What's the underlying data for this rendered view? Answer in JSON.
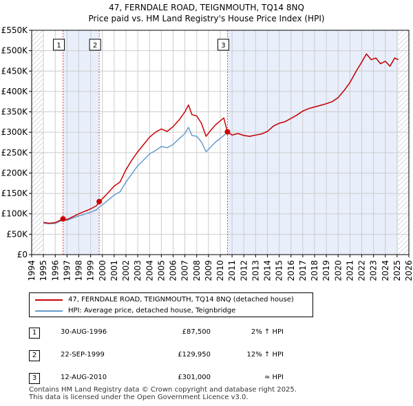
{
  "chart_data": {
    "type": "line",
    "title": "47, FERNDALE ROAD, TEIGNMOUTH, TQ14 8NQ",
    "subtitle": "Price paid vs. HM Land Registry's House Price Index (HPI)",
    "xlim": [
      1994,
      2026
    ],
    "ylim": [
      0,
      550000
    ],
    "x_ticks": [
      1994,
      1995,
      1996,
      1997,
      1998,
      1999,
      2000,
      2001,
      2002,
      2003,
      2004,
      2005,
      2006,
      2007,
      2008,
      2009,
      2010,
      2011,
      2012,
      2013,
      2014,
      2015,
      2016,
      2017,
      2018,
      2019,
      2020,
      2021,
      2022,
      2023,
      2024,
      2025,
      2026
    ],
    "y_ticks": [
      {
        "value": 0,
        "label": "£0"
      },
      {
        "value": 50000,
        "label": "£50K"
      },
      {
        "value": 100000,
        "label": "£100K"
      },
      {
        "value": 150000,
        "label": "£150K"
      },
      {
        "value": 200000,
        "label": "£200K"
      },
      {
        "value": 250000,
        "label": "£250K"
      },
      {
        "value": 300000,
        "label": "£300K"
      },
      {
        "value": 350000,
        "label": "£350K"
      },
      {
        "value": 400000,
        "label": "£400K"
      },
      {
        "value": 450000,
        "label": "£450K"
      },
      {
        "value": 500000,
        "label": "£500K"
      },
      {
        "value": 550000,
        "label": "£550K"
      }
    ],
    "grid": true,
    "shaded_ranges": [
      [
        1996.66,
        1999.73
      ],
      [
        2010.61,
        2025.1
      ]
    ],
    "hatched_ranges": [
      [
        1994,
        1995.0
      ],
      [
        2025.1,
        2026
      ]
    ],
    "series": [
      {
        "name": "47, FERNDALE ROAD, TEIGNMOUTH, TQ14 8NQ (detached house)",
        "color": "#cc0000",
        "points": [
          [
            1995.0,
            79000
          ],
          [
            1995.5,
            77000
          ],
          [
            1996.0,
            78500
          ],
          [
            1996.66,
            87500
          ],
          [
            1997.0,
            86000
          ],
          [
            1997.5,
            93000
          ],
          [
            1998.0,
            100000
          ],
          [
            1998.5,
            106000
          ],
          [
            1999.0,
            112000
          ],
          [
            1999.5,
            120000
          ],
          [
            1999.73,
            129950
          ],
          [
            2000.0,
            137000
          ],
          [
            2000.5,
            152000
          ],
          [
            2001.0,
            168000
          ],
          [
            2001.5,
            178000
          ],
          [
            2002.0,
            208000
          ],
          [
            2002.5,
            232000
          ],
          [
            2003.0,
            252000
          ],
          [
            2003.5,
            270000
          ],
          [
            2004.0,
            288000
          ],
          [
            2004.5,
            300000
          ],
          [
            2005.0,
            308000
          ],
          [
            2005.5,
            302000
          ],
          [
            2006.0,
            314000
          ],
          [
            2006.5,
            330000
          ],
          [
            2007.0,
            350000
          ],
          [
            2007.3,
            367000
          ],
          [
            2007.6,
            343000
          ],
          [
            2008.0,
            340000
          ],
          [
            2008.4,
            322000
          ],
          [
            2008.8,
            290000
          ],
          [
            2009.2,
            305000
          ],
          [
            2009.6,
            318000
          ],
          [
            2010.0,
            328000
          ],
          [
            2010.3,
            335000
          ],
          [
            2010.61,
            301000
          ],
          [
            2011.0,
            293000
          ],
          [
            2011.5,
            297000
          ],
          [
            2012.0,
            292000
          ],
          [
            2012.5,
            290000
          ],
          [
            2013.0,
            293000
          ],
          [
            2013.5,
            296000
          ],
          [
            2014.0,
            302000
          ],
          [
            2014.5,
            315000
          ],
          [
            2015.0,
            322000
          ],
          [
            2015.5,
            326000
          ],
          [
            2016.0,
            334000
          ],
          [
            2016.5,
            342000
          ],
          [
            2017.0,
            352000
          ],
          [
            2017.5,
            358000
          ],
          [
            2018.0,
            362000
          ],
          [
            2018.5,
            366000
          ],
          [
            2019.0,
            370000
          ],
          [
            2019.5,
            375000
          ],
          [
            2020.0,
            385000
          ],
          [
            2020.5,
            402000
          ],
          [
            2021.0,
            422000
          ],
          [
            2021.5,
            448000
          ],
          [
            2022.0,
            472000
          ],
          [
            2022.4,
            492000
          ],
          [
            2022.8,
            478000
          ],
          [
            2023.2,
            482000
          ],
          [
            2023.6,
            468000
          ],
          [
            2024.0,
            474000
          ],
          [
            2024.4,
            462000
          ],
          [
            2024.8,
            482000
          ],
          [
            2025.1,
            478000
          ]
        ]
      },
      {
        "name": "HPI: Average price, detached house, Teignbridge",
        "color": "#6699cc",
        "points": [
          [
            1995.0,
            77000
          ],
          [
            1995.5,
            75500
          ],
          [
            1996.0,
            76500
          ],
          [
            1996.66,
            85000
          ],
          [
            1997.0,
            84000
          ],
          [
            1997.5,
            90000
          ],
          [
            1998.0,
            95000
          ],
          [
            1998.5,
            99000
          ],
          [
            1999.0,
            104000
          ],
          [
            1999.5,
            110000
          ],
          [
            1999.73,
            116000
          ],
          [
            2000.0,
            122000
          ],
          [
            2000.5,
            134000
          ],
          [
            2001.0,
            146000
          ],
          [
            2001.5,
            154000
          ],
          [
            2002.0,
            178000
          ],
          [
            2002.5,
            198000
          ],
          [
            2003.0,
            218000
          ],
          [
            2003.5,
            232000
          ],
          [
            2004.0,
            247000
          ],
          [
            2004.5,
            255000
          ],
          [
            2005.0,
            265000
          ],
          [
            2005.5,
            262000
          ],
          [
            2006.0,
            270000
          ],
          [
            2006.5,
            284000
          ],
          [
            2007.0,
            297000
          ],
          [
            2007.3,
            312000
          ],
          [
            2007.6,
            292000
          ],
          [
            2008.0,
            290000
          ],
          [
            2008.4,
            276000
          ],
          [
            2008.8,
            252000
          ],
          [
            2009.2,
            264000
          ],
          [
            2009.6,
            276000
          ],
          [
            2010.0,
            285000
          ],
          [
            2010.3,
            292000
          ],
          [
            2010.61,
            301000
          ],
          [
            2011.0,
            293000
          ],
          [
            2011.5,
            297000
          ],
          [
            2012.0,
            292000
          ],
          [
            2012.5,
            290000
          ],
          [
            2013.0,
            293000
          ],
          [
            2013.5,
            296000
          ],
          [
            2014.0,
            302000
          ],
          [
            2014.5,
            315000
          ],
          [
            2015.0,
            322000
          ],
          [
            2015.5,
            326000
          ],
          [
            2016.0,
            334000
          ],
          [
            2016.5,
            342000
          ],
          [
            2017.0,
            352000
          ],
          [
            2017.5,
            358000
          ],
          [
            2018.0,
            362000
          ],
          [
            2018.5,
            366000
          ],
          [
            2019.0,
            370000
          ],
          [
            2019.5,
            375000
          ],
          [
            2020.0,
            385000
          ],
          [
            2020.5,
            402000
          ],
          [
            2021.0,
            422000
          ],
          [
            2021.5,
            448000
          ],
          [
            2022.0,
            472000
          ],
          [
            2022.4,
            492000
          ],
          [
            2022.8,
            478000
          ],
          [
            2023.2,
            482000
          ],
          [
            2023.6,
            468000
          ],
          [
            2024.0,
            474000
          ],
          [
            2024.4,
            462000
          ],
          [
            2024.8,
            482000
          ],
          [
            2025.1,
            478000
          ]
        ]
      }
    ],
    "sale_markers": [
      {
        "id": "1",
        "x": 1996.66,
        "price": 87500
      },
      {
        "id": "2",
        "x": 1999.73,
        "price": 129950
      },
      {
        "id": "3",
        "x": 2010.61,
        "price": 301000
      }
    ]
  },
  "legend": {
    "property_label": "47, FERNDALE ROAD, TEIGNMOUTH, TQ14 8NQ (detached house)",
    "hpi_label": "HPI: Average price, detached house, Teignbridge",
    "property_color": "#cc0000",
    "hpi_color": "#6699cc"
  },
  "sales": [
    {
      "id": "1",
      "date": "30-AUG-1996",
      "price": "£87,500",
      "hpi": "2% ↑ HPI"
    },
    {
      "id": "2",
      "date": "22-SEP-1999",
      "price": "£129,950",
      "hpi": "12% ↑ HPI"
    },
    {
      "id": "3",
      "date": "12-AUG-2010",
      "price": "£301,000",
      "hpi": "≈ HPI"
    }
  ],
  "footer": {
    "line1": "Contains HM Land Registry data © Crown copyright and database right 2025.",
    "line2": "This data is licensed under the Open Government Licence v3.0."
  }
}
